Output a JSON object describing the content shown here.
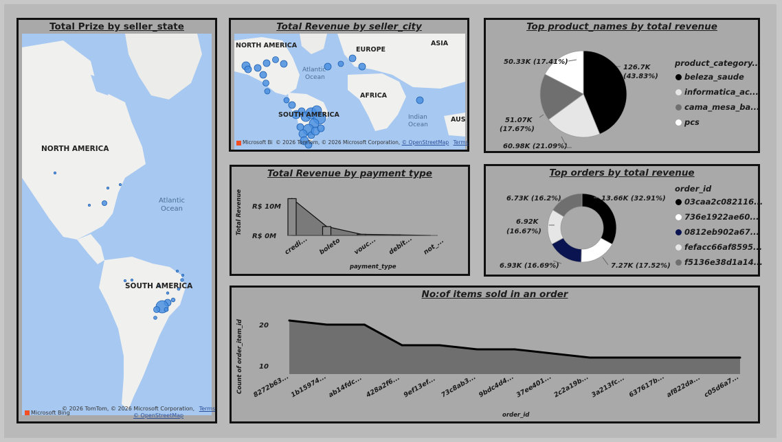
{
  "panels": {
    "map_state": {
      "title": "Total Prize by seller_state",
      "labels": {
        "north_america": "NORTH AMERICA",
        "atlantic": "Atlantic",
        "ocean": "Ocean",
        "south_america": "SOUTH AMERICA"
      },
      "credit": "© 2026 TomTom, © 2026 Microsoft Corporation,",
      "terms": "Terms",
      "osm": "© OpenStreetMap",
      "bing": "Microsoft Bing"
    },
    "map_city": {
      "title": "Total Revenue by seller_city",
      "labels": {
        "north_america": "NORTH AMERICA",
        "europe": "EUROPE",
        "asia": "ASIA",
        "atlantic": "Atlantic",
        "ocean": "Ocean",
        "africa": "AFRICA",
        "south_america": "SOUTH AMERICA",
        "indian": "Indian",
        "indian_ocean": "Ocean",
        "aus": "AUS"
      },
      "credit": "© 2026 TomTom, © 2026 Microsoft Corporation,",
      "osm": "© OpenStreetMap",
      "terms": "Terms",
      "bing": "Microsoft Bi"
    },
    "products": {
      "title": "Top product_names by total revenue",
      "legend_title": "product_category...",
      "slice_labels": [
        "126.7K",
        "(43.83%)",
        "60.98K (21.09%)",
        "51.07K",
        "(17.67%)",
        "50.33K (17.41%)"
      ]
    },
    "payment": {
      "title": "Total Revenue by payment type",
      "ylabel": "Total Revenue",
      "xlabel": "payment_type",
      "yticks": [
        "R$ 10M",
        "R$ 0M"
      ],
      "categories": [
        "credi...",
        "boleto",
        "vouc...",
        "debit...",
        "not_..."
      ]
    },
    "orders": {
      "title": "Top orders by total revenue",
      "legend_title": "order_id",
      "slice_labels": [
        "13.66K (32.91%)",
        "7.27K (17.52%)",
        "6.93K (16.69%)",
        "6.92K",
        "(16.67%)",
        "6.73K (16.2%)"
      ]
    },
    "items": {
      "title": "No:of items sold in an order",
      "ylabel": "Count of order_item_id",
      "xlabel": "order_id",
      "yticks": [
        "20",
        "10"
      ]
    }
  },
  "chart_data": [
    {
      "type": "pie",
      "title": "Top product_names by total revenue",
      "categories": [
        "beleza_saude",
        "informatica_ac...",
        "cama_mesa_ba...",
        "pcs"
      ],
      "values": [
        126.7,
        60.98,
        51.07,
        50.33
      ],
      "percentages": [
        43.83,
        21.09,
        17.67,
        17.41
      ],
      "colors": [
        "#000000",
        "#e6e6e6",
        "#6f6f6f",
        "#ffffff"
      ]
    },
    {
      "type": "pie",
      "title": "Top orders by total revenue",
      "categories": [
        "03caa2c082116...",
        "736e1922ae60...",
        "0812eb902a67...",
        "fefacc66af8595...",
        "f5136e38d1a14..."
      ],
      "values": [
        13.66,
        7.27,
        6.93,
        6.92,
        6.73
      ],
      "percentages": [
        32.91,
        17.52,
        16.69,
        16.67,
        16.2
      ],
      "colors": [
        "#000000",
        "#ffffff",
        "#0a1450",
        "#e6e6e6",
        "#6f6f6f"
      ]
    },
    {
      "type": "area",
      "title": "Total Revenue by payment type",
      "categories": [
        "credi...",
        "boleto",
        "vouc...",
        "debit...",
        "not_..."
      ],
      "values": [
        12.5,
        3.0,
        0.38,
        0.22,
        0.0
      ],
      "ylim": [
        0,
        14
      ],
      "xlabel": "payment_type",
      "ylabel": "Total Revenue"
    },
    {
      "type": "area",
      "title": "No:of items sold in an order",
      "categories": [
        "8272b63...",
        "1b15974...",
        "ab14fdc...",
        "428a2f6...",
        "9ef13ef...",
        "73c8ab3...",
        "9bdc4d4...",
        "37ee401...",
        "2c2a19b...",
        "3a213fc...",
        "637617b...",
        "af822da...",
        "c05d6a7..."
      ],
      "values": [
        21,
        20,
        20,
        15,
        15,
        14,
        14,
        13,
        12,
        12,
        12,
        12,
        12
      ],
      "ylim": [
        8,
        23
      ],
      "xlabel": "order_id",
      "ylabel": "Count of order_item_id"
    }
  ]
}
